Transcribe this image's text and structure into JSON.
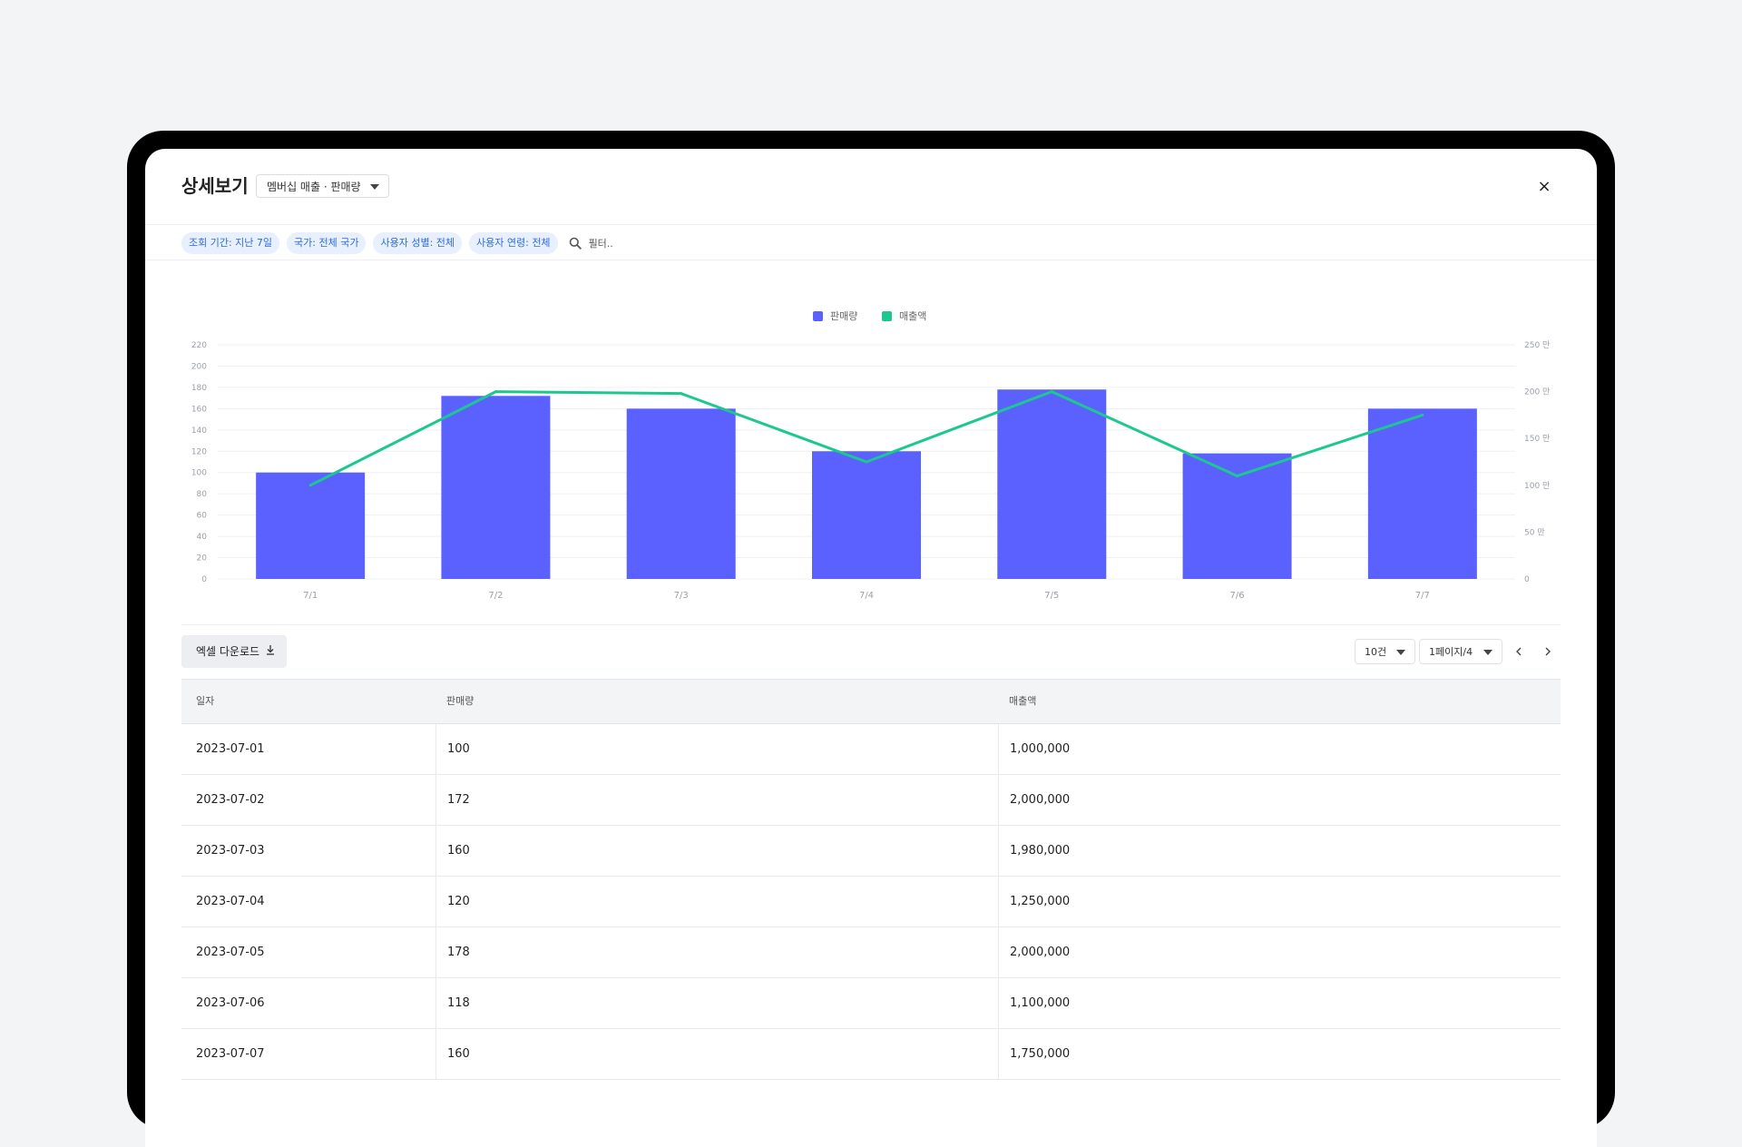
{
  "header": {
    "title": "상세보기",
    "dropdown_label": "멤버십 매출 · 판매량",
    "close_label": "×"
  },
  "filters": {
    "chips": [
      "조회 기간: 지난 7일",
      "국가: 전체 국가",
      "사용자 성별: 전체",
      "사용자 연령: 전체"
    ],
    "search_placeholder": "필터.."
  },
  "chart_data": {
    "type": "bar",
    "categories": [
      "7/1",
      "7/2",
      "7/3",
      "7/4",
      "7/5",
      "7/6",
      "7/7"
    ],
    "series": [
      {
        "name": "판매량",
        "type": "bar",
        "axis": "left",
        "color": "#5b61fe",
        "values": [
          100,
          172,
          160,
          120,
          178,
          118,
          160
        ]
      },
      {
        "name": "매출액",
        "type": "line",
        "axis": "right",
        "color": "#1cc88f",
        "values": [
          1000000,
          2000000,
          1980000,
          1250000,
          2000000,
          1100000,
          1750000
        ]
      }
    ],
    "y_left": {
      "min": 0,
      "max": 220,
      "ticks": [
        "0",
        "20",
        "40",
        "60",
        "80",
        "100",
        "120",
        "140",
        "160",
        "180",
        "200",
        "220"
      ]
    },
    "y_right": {
      "min": 0,
      "max": 2500000,
      "ticks": [
        "0",
        "50 만",
        "100 만",
        "150 만",
        "200 만",
        "250 만"
      ]
    },
    "legend_position": "top-center",
    "grid": true
  },
  "toolbar": {
    "excel_label": "엑셀 다운로드",
    "page_size": "10건",
    "page_select": "1페이지/4"
  },
  "table": {
    "columns": [
      "일자",
      "판매량",
      "매출액"
    ],
    "rows": [
      [
        "2023-07-01",
        "100",
        "1,000,000"
      ],
      [
        "2023-07-02",
        "172",
        "2,000,000"
      ],
      [
        "2023-07-03",
        "160",
        "1,980,000"
      ],
      [
        "2023-07-04",
        "120",
        "1,250,000"
      ],
      [
        "2023-07-05",
        "178",
        "2,000,000"
      ],
      [
        "2023-07-06",
        "118",
        "1,100,000"
      ],
      [
        "2023-07-07",
        "160",
        "1,750,000"
      ]
    ]
  }
}
